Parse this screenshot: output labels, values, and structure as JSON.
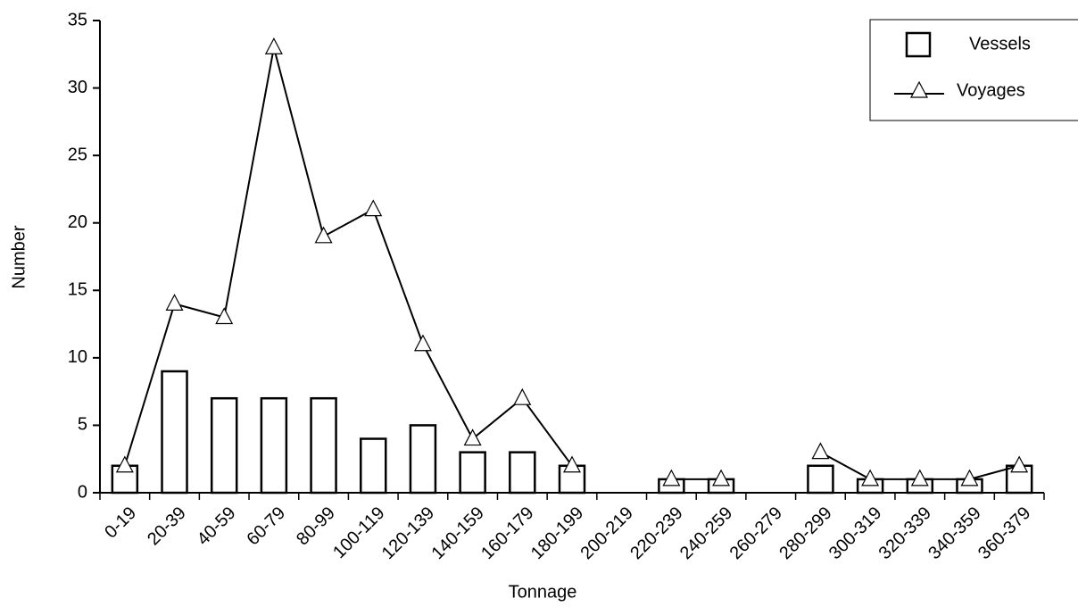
{
  "chart_data": {
    "type": "combo",
    "x_label": "Tonnage",
    "y_label": "Number",
    "categories": [
      "0-19",
      "20-39",
      "40-59",
      "60-79",
      "80-99",
      "100-119",
      "120-139",
      "140-159",
      "160-179",
      "180-199",
      "200-219",
      "220-239",
      "240-259",
      "260-279",
      "280-299",
      "300-319",
      "320-339",
      "340-359",
      "360-379"
    ],
    "series": [
      {
        "name": "Vessels",
        "type": "bar",
        "color": "#000000",
        "values": [
          2,
          9,
          7,
          7,
          7,
          4,
          5,
          3,
          3,
          2,
          0,
          1,
          1,
          0,
          2,
          1,
          1,
          1,
          2
        ]
      },
      {
        "name": "Voyages",
        "type": "line",
        "color": "#000000",
        "values": [
          2,
          14,
          13,
          33,
          19,
          21,
          11,
          4,
          7,
          2,
          null,
          1,
          1,
          null,
          3,
          1,
          1,
          1,
          2
        ]
      }
    ],
    "ylim": [
      0,
      35
    ],
    "yticks": [
      0,
      5,
      10,
      15,
      20,
      25,
      30,
      35
    ],
    "grid": false,
    "legend": "upper right"
  }
}
